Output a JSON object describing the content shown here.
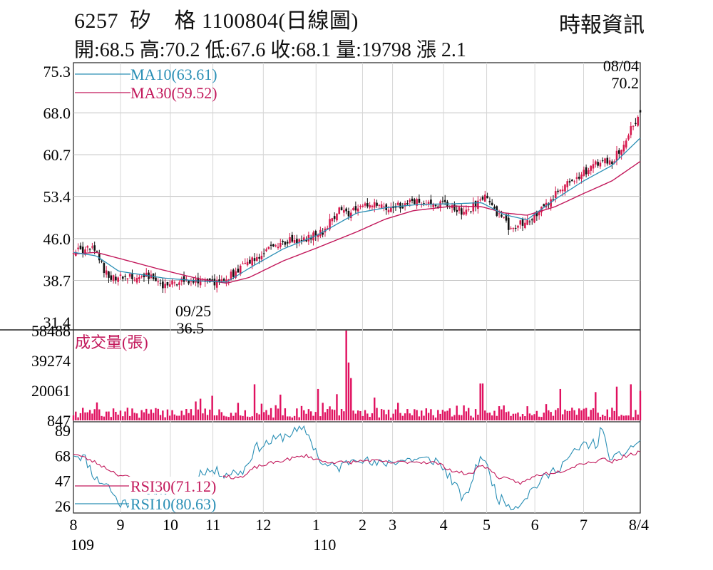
{
  "header": {
    "title": "6257  矽    格 1100804(日線圖)",
    "source": "時報資訊",
    "quote": "開:68.5 高:70.2 低:67.6 收:68.1 量:19798 漲 2.1"
  },
  "colors": {
    "up": "#d61a4e",
    "down": "#111111",
    "ma10": "#2a8fb5",
    "ma30": "#c2185b",
    "volume": "#e0105f",
    "rsi10": "#2a8fb5",
    "rsi30": "#c2185b",
    "grid": "#c0c0c0"
  },
  "chart_data": [
    {
      "type": "candlestick",
      "panel": "price",
      "y_ticks": [
        "75.3",
        "68.0",
        "60.7",
        "53.4",
        "46.0",
        "38.7",
        "31.4"
      ],
      "ylim": [
        31.4,
        75.3
      ],
      "legend": [
        {
          "name": "MA10(63.61)",
          "color": "#2a8fb5"
        },
        {
          "name": "MA30(59.52)",
          "color": "#c2185b"
        }
      ],
      "annotations": [
        {
          "text": [
            "09/25",
            "36.5"
          ],
          "x": 0.165,
          "y": 36.5
        },
        {
          "text": [
            "08/04",
            "70.2"
          ],
          "x": 0.998,
          "y": 70.2
        }
      ],
      "anchors": [
        [
          0.0,
          43.8
        ],
        [
          0.035,
          44.2
        ],
        [
          0.05,
          41.5
        ],
        [
          0.06,
          39.4
        ],
        [
          0.09,
          39.1
        ],
        [
          0.13,
          39.4
        ],
        [
          0.165,
          37.6
        ],
        [
          0.19,
          38.8
        ],
        [
          0.25,
          38.2
        ],
        [
          0.265,
          38.6
        ],
        [
          0.32,
          42.6
        ],
        [
          0.36,
          45.2
        ],
        [
          0.41,
          46.0
        ],
        [
          0.44,
          47.3
        ],
        [
          0.47,
          51.2
        ],
        [
          0.48,
          50.2
        ],
        [
          0.52,
          51.9
        ],
        [
          0.55,
          51.3
        ],
        [
          0.6,
          52.3
        ],
        [
          0.66,
          51.9
        ],
        [
          0.69,
          50.4
        ],
        [
          0.725,
          53.3
        ],
        [
          0.74,
          51.3
        ],
        [
          0.77,
          47.9
        ],
        [
          0.8,
          49.2
        ],
        [
          0.83,
          51.5
        ],
        [
          0.87,
          55.7
        ],
        [
          0.9,
          57.6
        ],
        [
          0.93,
          59.6
        ],
        [
          0.95,
          59.5
        ],
        [
          0.975,
          63.5
        ],
        [
          1.0,
          68.1
        ]
      ],
      "ma10_anchors": [
        [
          0.0,
          43.6
        ],
        [
          0.04,
          43.0
        ],
        [
          0.08,
          40.3
        ],
        [
          0.16,
          39.1
        ],
        [
          0.22,
          38.6
        ],
        [
          0.27,
          38.4
        ],
        [
          0.32,
          41.4
        ],
        [
          0.37,
          44.2
        ],
        [
          0.43,
          46.6
        ],
        [
          0.5,
          50.5
        ],
        [
          0.55,
          51.4
        ],
        [
          0.61,
          52.0
        ],
        [
          0.67,
          52.1
        ],
        [
          0.72,
          52.3
        ],
        [
          0.76,
          50.2
        ],
        [
          0.8,
          49.3
        ],
        [
          0.85,
          52.9
        ],
        [
          0.9,
          56.1
        ],
        [
          0.95,
          58.8
        ],
        [
          1.0,
          63.61
        ]
      ],
      "ma30_anchors": [
        [
          0.0,
          43.3
        ],
        [
          0.04,
          43.6
        ],
        [
          0.09,
          42.3
        ],
        [
          0.15,
          40.7
        ],
        [
          0.22,
          39.0
        ],
        [
          0.27,
          38.2
        ],
        [
          0.31,
          39.2
        ],
        [
          0.37,
          42.1
        ],
        [
          0.43,
          44.4
        ],
        [
          0.5,
          47.2
        ],
        [
          0.55,
          49.4
        ],
        [
          0.6,
          50.9
        ],
        [
          0.67,
          51.7
        ],
        [
          0.72,
          51.6
        ],
        [
          0.76,
          50.5
        ],
        [
          0.8,
          50.1
        ],
        [
          0.85,
          51.6
        ],
        [
          0.9,
          53.9
        ],
        [
          0.95,
          56.1
        ],
        [
          1.0,
          59.52
        ]
      ]
    },
    {
      "type": "bar",
      "panel": "volume",
      "title": "成交量(張)",
      "y_ticks": [
        "58488",
        "39274",
        "20061",
        "847"
      ],
      "ylim": [
        847,
        58488
      ],
      "spikes": [
        {
          "x": 0.32,
          "v": 24000
        },
        {
          "x": 0.43,
          "v": 21000
        },
        {
          "x": 0.48,
          "v": 58488
        },
        {
          "x": 0.485,
          "v": 38000
        },
        {
          "x": 0.49,
          "v": 28000
        },
        {
          "x": 0.72,
          "v": 24500
        },
        {
          "x": 0.53,
          "v": 15500
        },
        {
          "x": 0.86,
          "v": 21000
        },
        {
          "x": 0.92,
          "v": 19000
        },
        {
          "x": 0.96,
          "v": 22500
        },
        {
          "x": 0.985,
          "v": 24000
        },
        {
          "x": 1.0,
          "v": 19798
        }
      ]
    },
    {
      "type": "line",
      "panel": "rsi",
      "y_ticks": [
        "89",
        "68",
        "47",
        "26"
      ],
      "ylim": [
        20,
        95
      ],
      "legend": [
        {
          "name": "RSI30(71.12)",
          "color": "#c2185b"
        },
        {
          "name": "RSI10(80.63)",
          "color": "#2a8fb5"
        }
      ],
      "rsi10_anchors": [
        [
          0.0,
          70
        ],
        [
          0.02,
          66
        ],
        [
          0.04,
          48
        ],
        [
          0.06,
          44
        ],
        [
          0.08,
          28
        ],
        [
          0.12,
          30
        ],
        [
          0.15,
          36
        ],
        [
          0.17,
          40
        ],
        [
          0.2,
          43
        ],
        [
          0.23,
          56
        ],
        [
          0.27,
          53
        ],
        [
          0.3,
          55
        ],
        [
          0.32,
          74
        ],
        [
          0.36,
          82
        ],
        [
          0.39,
          88
        ],
        [
          0.41,
          89
        ],
        [
          0.44,
          60
        ],
        [
          0.47,
          58
        ],
        [
          0.5,
          68
        ],
        [
          0.53,
          60
        ],
        [
          0.56,
          63
        ],
        [
          0.6,
          65
        ],
        [
          0.64,
          64
        ],
        [
          0.66,
          53
        ],
        [
          0.69,
          30
        ],
        [
          0.72,
          70
        ],
        [
          0.75,
          32
        ],
        [
          0.78,
          25
        ],
        [
          0.82,
          45
        ],
        [
          0.86,
          60
        ],
        [
          0.9,
          77
        ],
        [
          0.925,
          78
        ],
        [
          0.93,
          91
        ],
        [
          0.95,
          63
        ],
        [
          0.97,
          70
        ],
        [
          1.0,
          80.63
        ]
      ],
      "rsi30_anchors": [
        [
          0.0,
          70
        ],
        [
          0.04,
          62
        ],
        [
          0.08,
          52
        ],
        [
          0.12,
          47
        ],
        [
          0.18,
          47
        ],
        [
          0.22,
          48
        ],
        [
          0.27,
          50
        ],
        [
          0.3,
          50
        ],
        [
          0.32,
          58
        ],
        [
          0.36,
          63
        ],
        [
          0.39,
          66
        ],
        [
          0.41,
          68
        ],
        [
          0.44,
          63
        ],
        [
          0.48,
          62
        ],
        [
          0.52,
          64
        ],
        [
          0.56,
          62
        ],
        [
          0.6,
          63
        ],
        [
          0.64,
          62
        ],
        [
          0.67,
          55
        ],
        [
          0.7,
          52
        ],
        [
          0.72,
          61
        ],
        [
          0.75,
          50
        ],
        [
          0.79,
          45
        ],
        [
          0.82,
          52
        ],
        [
          0.86,
          55
        ],
        [
          0.9,
          62
        ],
        [
          0.925,
          63
        ],
        [
          0.93,
          66
        ],
        [
          0.95,
          63
        ],
        [
          0.97,
          67
        ],
        [
          1.0,
          71.12
        ]
      ]
    }
  ],
  "x_axis": {
    "months": [
      {
        "label": "8",
        "x": 0.0
      },
      {
        "label": "9",
        "x": 0.083
      },
      {
        "label": "10",
        "x": 0.171
      },
      {
        "label": "11",
        "x": 0.246
      },
      {
        "label": "12",
        "x": 0.335
      },
      {
        "label": "1",
        "x": 0.428
      },
      {
        "label": "2",
        "x": 0.51
      },
      {
        "label": "3",
        "x": 0.563
      },
      {
        "label": "4",
        "x": 0.653
      },
      {
        "label": "5",
        "x": 0.729
      },
      {
        "label": "6",
        "x": 0.814
      },
      {
        "label": "7",
        "x": 0.9
      },
      {
        "label": "8/4",
        "x": 1.0
      }
    ],
    "years": [
      {
        "label": "109",
        "x": 0.0
      },
      {
        "label": "110",
        "x": 0.428
      }
    ]
  }
}
